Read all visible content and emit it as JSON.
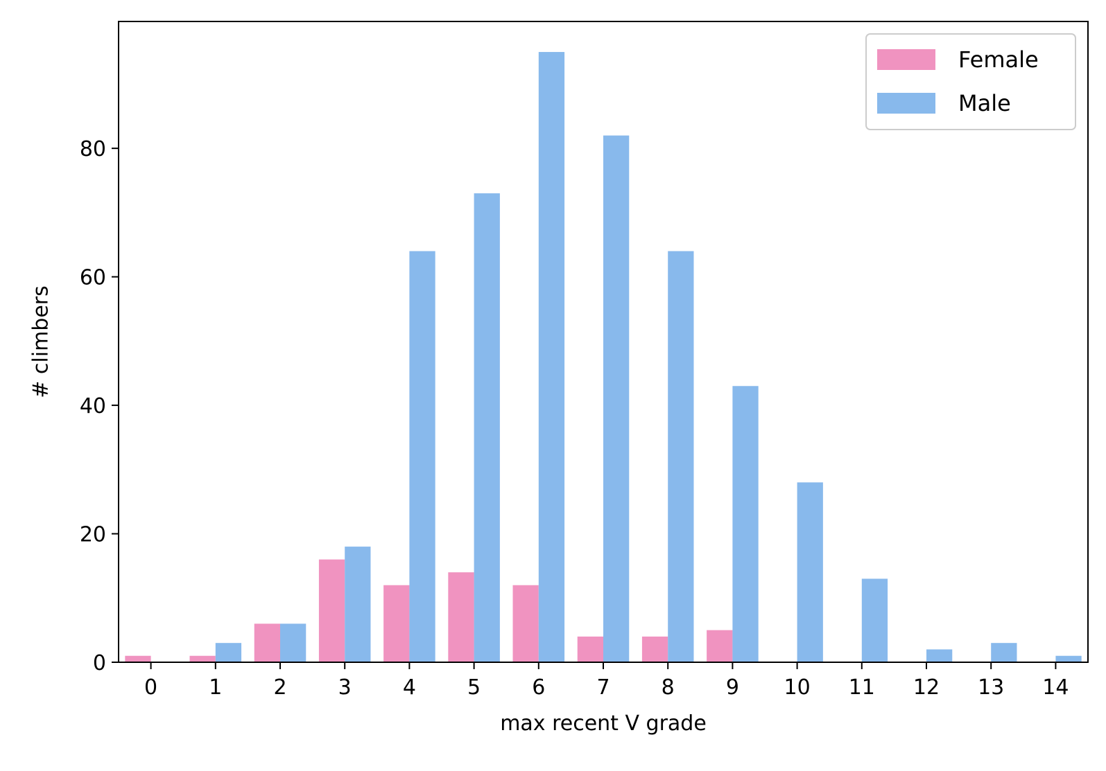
{
  "chart_data": {
    "type": "bar",
    "title": "",
    "xlabel": "max recent V grade",
    "ylabel": "# climbers",
    "categories": [
      "0",
      "1",
      "2",
      "3",
      "4",
      "5",
      "6",
      "7",
      "8",
      "9",
      "10",
      "11",
      "12",
      "13",
      "14"
    ],
    "series": [
      {
        "name": "Female",
        "color": "#f093c0",
        "values": [
          1,
          1,
          6,
          16,
          12,
          14,
          12,
          4,
          4,
          5,
          0,
          0,
          0,
          0,
          0
        ]
      },
      {
        "name": "Male",
        "color": "#88b9ec",
        "values": [
          0,
          3,
          6,
          18,
          64,
          73,
          95,
          82,
          64,
          43,
          28,
          13,
          2,
          3,
          1
        ]
      }
    ],
    "ylim": [
      0,
      99.75
    ],
    "yticks": [
      0,
      20,
      40,
      60,
      80
    ],
    "grid": false,
    "legend": "top-right"
  }
}
